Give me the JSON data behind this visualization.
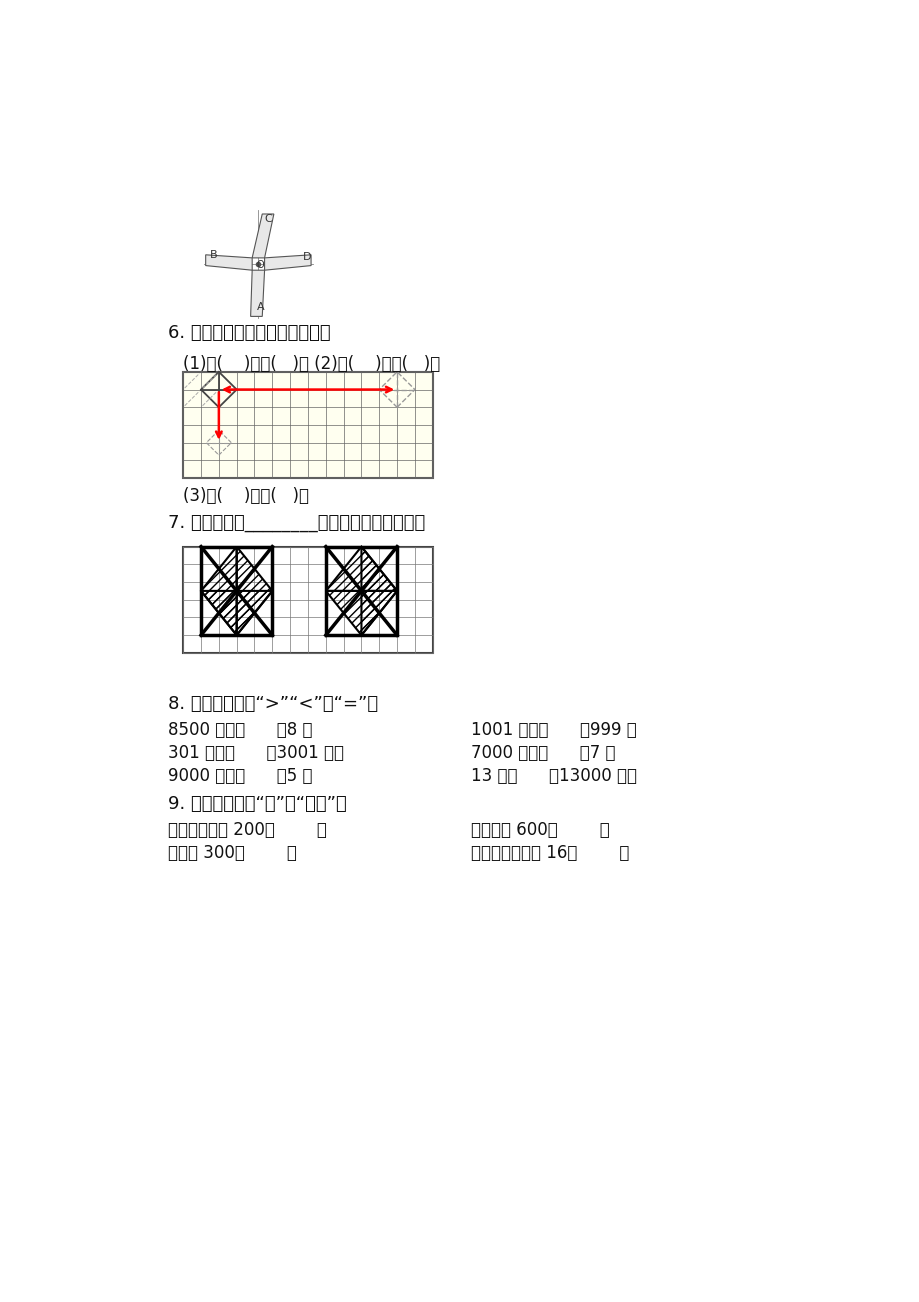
{
  "title_6": "6. 观察下面图形，然后填一填。",
  "label_6_1": "(1)向(    )平移(   )格 (2)向(    )平移(   )格",
  "label_6_3": "(3)向(    )平移(   )格",
  "title_7": "7. 图形一通过________的变换可以得到图二。",
  "title_8": "8. 在括号内填上“>”“<”或“=”。",
  "q8_line1_left": "8500 毫升（      ）8 升",
  "q8_line1_right": "1001 毫升（      ）999 升",
  "q8_line2_left": "301 毫升（      ）3001 毫升",
  "q8_line2_right": "7000 毫升（      ）7 升",
  "q8_line3_left": "9000 毫升（      ）5 升",
  "q8_line3_right": "13 升（      ）13000 毫升",
  "title_9": "9. 在括号里填上“升”或“毫升”。",
  "q9_line1_left": "一瓶矿泉水有 200（        ）",
  "q9_line1_right": "一瓶果汁 600（        ）",
  "q9_line2_left": "一缸水 300（        ）",
  "q9_line2_right": "一个油桶可装油 16（        ）"
}
